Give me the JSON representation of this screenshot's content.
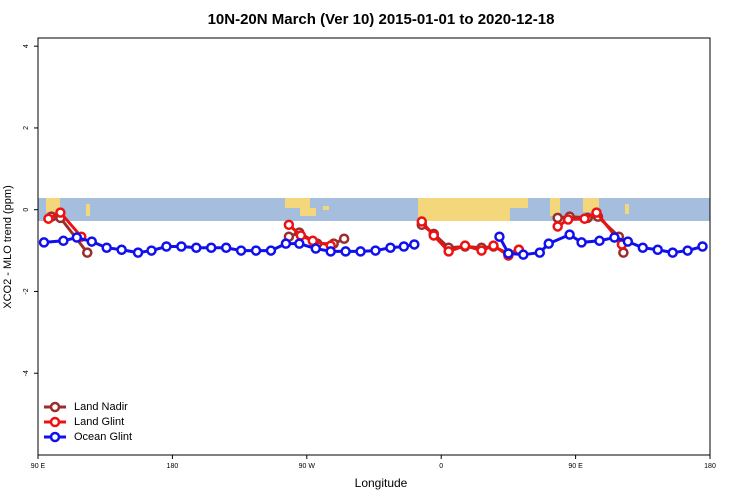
{
  "chart_data": {
    "type": "line",
    "title": "10N-20N March (Ver 10)   2015-01-01 to 2020-12-18",
    "x_label": "Longitude",
    "y_label": "XCO2 - MLO trend (ppm)",
    "xlim": [
      90,
      540
    ],
    "xticks": [
      {
        "value": 90,
        "label": "90 E"
      },
      {
        "value": 180,
        "label": "180"
      },
      {
        "value": 270,
        "label": "90 W"
      },
      {
        "value": 360,
        "label": "0"
      },
      {
        "value": 450,
        "label": "90 E"
      },
      {
        "value": 540,
        "label": "180"
      }
    ],
    "ylim": [
      -6,
      4.2
    ],
    "yticks": [
      -4,
      -2,
      0,
      2,
      4
    ],
    "legend": "bottom-left",
    "series": [
      {
        "name": "Land Nadir",
        "color": "#9b2d2d",
        "x": [
          99,
          105,
          123,
          null,
          258,
          265,
          277,
          288,
          295,
          null,
          347,
          355,
          365,
          376,
          387,
          395,
          405,
          412,
          null,
          438,
          446,
          458,
          465,
          479,
          482
        ],
        "values": [
          -0.17,
          -0.2,
          -1.05,
          null,
          -0.66,
          -0.56,
          -0.83,
          -0.83,
          -0.71,
          null,
          -0.37,
          -0.59,
          -0.93,
          -0.9,
          -0.93,
          -0.9,
          -1.07,
          -0.98,
          null,
          -0.2,
          -0.17,
          -0.2,
          -0.17,
          -0.66,
          -1.05
        ]
      },
      {
        "name": "Land Glint",
        "color": "#ee1111",
        "x": [
          97,
          105,
          119,
          null,
          258,
          266,
          274,
          286,
          null,
          347,
          355,
          365,
          376,
          387,
          395,
          405,
          412,
          null,
          438,
          445,
          456,
          464,
          481
        ],
        "values": [
          -0.22,
          -0.07,
          -0.66,
          null,
          -0.37,
          -0.63,
          -0.76,
          -0.88,
          null,
          -0.29,
          -0.63,
          -1.02,
          -0.88,
          -1.0,
          -0.88,
          -1.12,
          -0.98,
          null,
          -0.41,
          -0.24,
          -0.22,
          -0.07,
          -0.85
        ]
      },
      {
        "name": "Ocean Glint",
        "color": "#1010ee",
        "x": [
          94,
          107,
          116,
          126,
          136,
          146,
          157,
          166,
          176,
          186,
          196,
          206,
          216,
          226,
          236,
          246,
          256,
          265,
          276,
          286,
          296,
          306,
          316,
          326,
          335,
          342,
          null,
          399,
          405,
          415,
          426,
          432,
          446,
          454,
          466,
          476,
          485,
          495,
          505,
          515,
          525,
          535
        ],
        "values": [
          -0.8,
          -0.76,
          -0.68,
          -0.78,
          -0.93,
          -0.98,
          -1.05,
          -1.0,
          -0.9,
          -0.9,
          -0.93,
          -0.93,
          -0.93,
          -1.0,
          -1.0,
          -1.0,
          -0.83,
          -0.83,
          -0.95,
          -1.02,
          -1.02,
          -1.02,
          -1.0,
          -0.93,
          -0.9,
          -0.85,
          null,
          -0.66,
          -1.07,
          -1.1,
          -1.05,
          -0.83,
          -0.61,
          -0.8,
          -0.76,
          -0.68,
          -0.78,
          -0.93,
          -0.98,
          -1.05,
          -1.0,
          -0.9
        ]
      }
    ]
  }
}
